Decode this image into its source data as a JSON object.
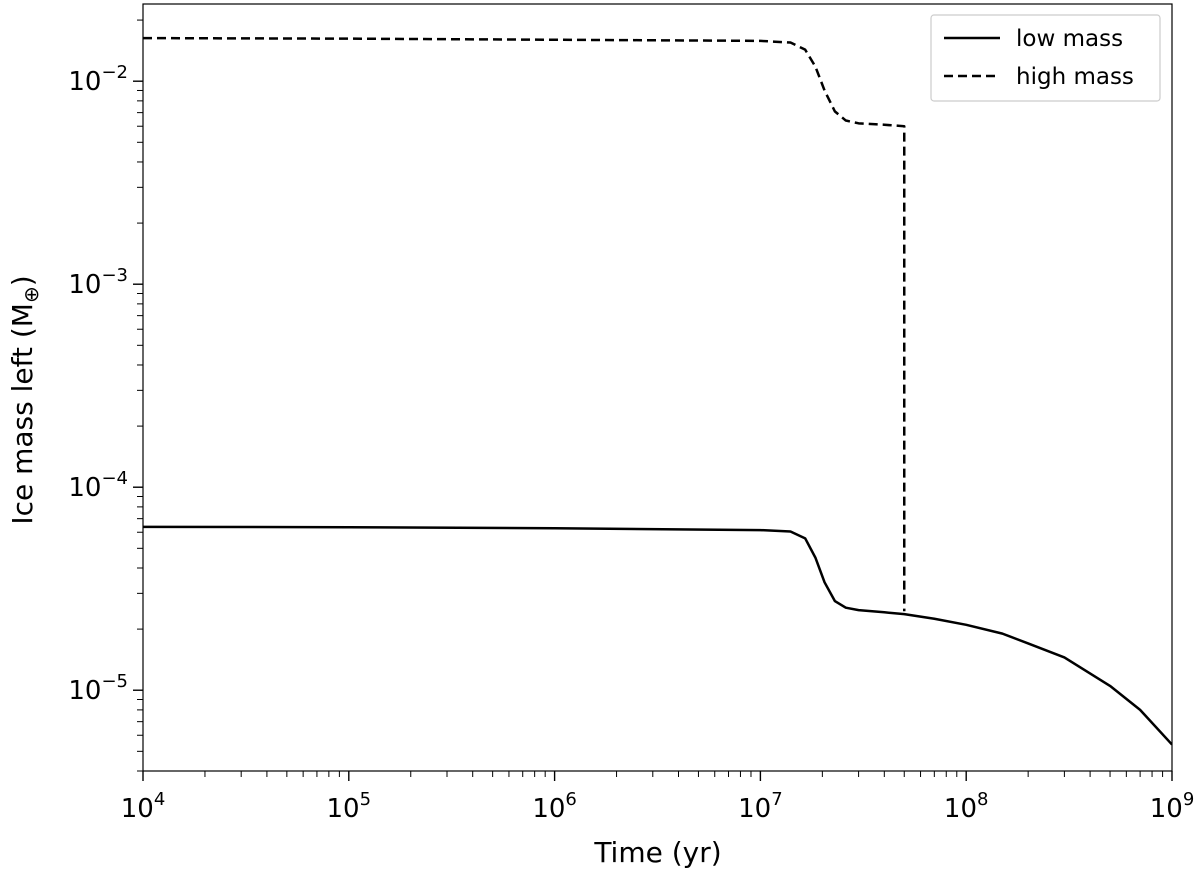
{
  "chart_data": {
    "type": "line",
    "xlabel": "Time (yr)",
    "ylabel_main": "Ice mass left (M",
    "ylabel_sub": "⊕",
    "ylabel_close": ")",
    "xscale": "log",
    "yscale": "log",
    "xlim": [
      10000,
      1000000000
    ],
    "ylim": [
      4e-06,
      0.024
    ],
    "x_tick_labels": [
      {
        "base": "10",
        "exp": "4",
        "value": 10000
      },
      {
        "base": "10",
        "exp": "5",
        "value": 100000
      },
      {
        "base": "10",
        "exp": "6",
        "value": 1000000
      },
      {
        "base": "10",
        "exp": "7",
        "value": 10000000
      },
      {
        "base": "10",
        "exp": "8",
        "value": 100000000
      },
      {
        "base": "10",
        "exp": "9",
        "value": 1000000000
      }
    ],
    "y_tick_labels": [
      {
        "base": "10",
        "exp": "−5",
        "value": 1e-05
      },
      {
        "base": "10",
        "exp": "−4",
        "value": 0.0001
      },
      {
        "base": "10",
        "exp": "−3",
        "value": 0.001
      },
      {
        "base": "10",
        "exp": "−2",
        "value": 0.01
      }
    ],
    "grid": false,
    "legend_position": "top-right",
    "series": [
      {
        "name": "low mass",
        "style": "solid",
        "color": "#000000",
        "points": [
          [
            10000,
            6.38e-05
          ],
          [
            100000,
            6.35e-05
          ],
          [
            1000000,
            6.28e-05
          ],
          [
            10000000,
            6.15e-05
          ],
          [
            14000000,
            6.05e-05
          ],
          [
            16500000,
            5.6e-05
          ],
          [
            18500000,
            4.5e-05
          ],
          [
            20500000,
            3.4e-05
          ],
          [
            23000000,
            2.75e-05
          ],
          [
            26000000,
            2.55e-05
          ],
          [
            30000000,
            2.48e-05
          ],
          [
            40000000,
            2.42e-05
          ],
          [
            50000000,
            2.37e-05
          ],
          [
            70000000,
            2.25e-05
          ],
          [
            100000000,
            2.1e-05
          ],
          [
            150000000,
            1.9e-05
          ],
          [
            200000000,
            1.7e-05
          ],
          [
            300000000,
            1.45e-05
          ],
          [
            500000000,
            1.05e-05
          ],
          [
            700000000,
            8e-06
          ],
          [
            1000000000,
            5.4e-06
          ]
        ]
      },
      {
        "name": "high mass",
        "style": "dashed",
        "color": "#000000",
        "points": [
          [
            10000,
            0.0163
          ],
          [
            100000,
            0.0162
          ],
          [
            1000000,
            0.016
          ],
          [
            10000000,
            0.0158
          ],
          [
            14000000,
            0.0155
          ],
          [
            16500000,
            0.0143
          ],
          [
            18500000,
            0.0118
          ],
          [
            20500000,
            0.009
          ],
          [
            23000000,
            0.0071
          ],
          [
            26000000,
            0.0064
          ],
          [
            30000000,
            0.0062
          ],
          [
            40000000,
            0.0061
          ],
          [
            50000000,
            0.006
          ],
          [
            50000000,
            2.45e-05
          ]
        ]
      }
    ]
  }
}
